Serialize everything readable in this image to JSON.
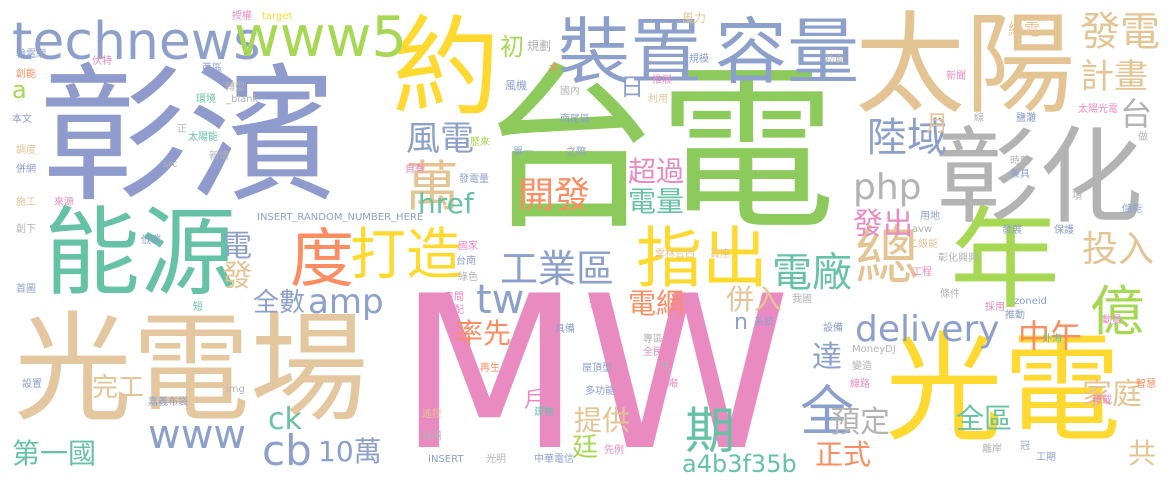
{
  "words": [
    {
      "text": "MW",
      "color": "#E98BC1"
    },
    {
      "text": "台電",
      "color": "#8CCB5B"
    },
    {
      "text": "彰濱",
      "color": "#8F9ACD"
    },
    {
      "text": "光電場",
      "color": "#E5C79F"
    },
    {
      "text": "光電",
      "color": "#FFD92F"
    },
    {
      "text": "能源",
      "color": "#66C2A5"
    },
    {
      "text": "太陽",
      "color": "#E5C494"
    },
    {
      "text": "彰化",
      "color": "#B3B3B3"
    },
    {
      "text": "約",
      "color": "#FFD92F"
    },
    {
      "text": "年",
      "color": "#A6D854"
    },
    {
      "text": "裝置",
      "color": "#8DA0CB"
    },
    {
      "text": "容量",
      "color": "#8DA0CB"
    },
    {
      "text": "technews",
      "color": "#8DA0CB"
    },
    {
      "text": "www5",
      "color": "#A6D854"
    },
    {
      "text": "度",
      "color": "#FC8D62"
    },
    {
      "text": "打造",
      "color": "#FFD92F"
    },
    {
      "text": "指出",
      "color": "#FFD92F"
    },
    {
      "text": "總",
      "color": "#E5C494"
    },
    {
      "text": "億",
      "color": "#A6D854"
    },
    {
      "text": "開發",
      "color": "#FC8D62"
    },
    {
      "text": "delivery",
      "color": "#8DA0CB"
    },
    {
      "text": "工業區",
      "color": "#8DA0CB"
    },
    {
      "text": "電廠",
      "color": "#66C2A5"
    },
    {
      "text": "amp",
      "color": "#8DA0CB"
    },
    {
      "text": "tw",
      "color": "#8DA0CB"
    },
    {
      "text": "陸域",
      "color": "#8DA0CB"
    },
    {
      "text": "風電",
      "color": "#8DA0CB"
    },
    {
      "text": "萬",
      "color": "#E5C494"
    },
    {
      "text": "php",
      "color": "#B3B3B3"
    },
    {
      "text": "計畫",
      "color": "#E5C494"
    },
    {
      "text": "發電",
      "color": "#E5C494"
    },
    {
      "text": "台",
      "color": "#B3B3B3"
    },
    {
      "text": "投入",
      "color": "#E5C494"
    },
    {
      "text": "全",
      "color": "#8DA0CB"
    },
    {
      "text": "www",
      "color": "#8DA0CB"
    },
    {
      "text": "cb",
      "color": "#8DA0CB"
    },
    {
      "text": "期",
      "color": "#66C2A5"
    },
    {
      "text": "中午",
      "color": "#FC8D62"
    },
    {
      "text": "全數",
      "color": "#8DA0CB"
    },
    {
      "text": "電網",
      "color": "#FC8D62"
    },
    {
      "text": "併入",
      "color": "#E5C494"
    },
    {
      "text": "率先",
      "color": "#FC8D62"
    },
    {
      "text": "href",
      "color": "#66C2A5"
    },
    {
      "text": "預定",
      "color": "#B3B3B3"
    },
    {
      "text": "全區",
      "color": "#66C2A5"
    },
    {
      "text": "家庭",
      "color": "#E5C494"
    },
    {
      "text": "提供",
      "color": "#E5C494"
    },
    {
      "text": "正式",
      "color": "#FC8D62"
    },
    {
      "text": "10萬",
      "color": "#8DA0CB"
    },
    {
      "text": "第一國",
      "color": "#66C2A5"
    },
    {
      "text": "a4b3f35b",
      "color": "#66C2A5"
    },
    {
      "text": "超過",
      "color": "#E98BC1"
    },
    {
      "text": "電量",
      "color": "#66C2A5"
    },
    {
      "text": "發出",
      "color": "#E98BC1"
    },
    {
      "text": "完工",
      "color": "#E5C494"
    },
    {
      "text": "達",
      "color": "#8DA0CB"
    },
    {
      "text": "共",
      "color": "#E5C494"
    },
    {
      "text": "ck",
      "color": "#66C2A5"
    },
    {
      "text": "電",
      "color": "#8DA0CB"
    },
    {
      "text": "發",
      "color": "#E5C494"
    },
    {
      "text": "n",
      "color": "#8DA0CB"
    },
    {
      "text": "月",
      "color": "#E5C494"
    },
    {
      "text": "日",
      "color": "#8DA0CB"
    },
    {
      "text": "初",
      "color": "#A6D854"
    },
    {
      "text": "a",
      "color": "#A6D854"
    },
    {
      "text": "戶",
      "color": "#E98BC1"
    },
    {
      "text": "廷",
      "color": "#A6D854"
    },
    {
      "text": "授權",
      "color": "#E98BC1"
    },
    {
      "text": "target",
      "color": "#FFD92F"
    },
    {
      "text": "風力",
      "color": "#E5C494"
    },
    {
      "text": "綠電",
      "color": "#E5C494"
    },
    {
      "text": "規劃",
      "color": "#B3B3B3"
    },
    {
      "text": "規模",
      "color": "#8DA0CB"
    },
    {
      "text": "功能",
      "color": "#B3B3B3"
    },
    {
      "text": "千",
      "color": "#FC8D62"
    },
    {
      "text": "推展",
      "color": "#E98BC1"
    },
    {
      "text": "風機",
      "color": "#8DA0CB"
    },
    {
      "text": "國內",
      "color": "#B3B3B3"
    },
    {
      "text": "利用",
      "color": "#E5C494"
    },
    {
      "text": "南尾區",
      "color": "#8DA0CB"
    },
    {
      "text": "單一",
      "color": "#8DA0CB"
    },
    {
      "text": "之際",
      "color": "#8DA0CB"
    },
    {
      "text": "歷來",
      "color": "#A6D854"
    },
    {
      "text": "自有",
      "color": "#E98BC1"
    },
    {
      "text": "發電量",
      "color": "#8DA0CB"
    },
    {
      "text": "輪電網",
      "color": "#8DA0CB"
    },
    {
      "text": "伏特",
      "color": "#E98BC1"
    },
    {
      "text": "創能",
      "color": "#FC8D62"
    },
    {
      "text": "西區",
      "color": "#8DA0CB"
    },
    {
      "text": "轉型",
      "color": "#B3B3B3"
    },
    {
      "text": "環境",
      "color": "#66C2A5"
    },
    {
      "text": "_blank",
      "color": "#B3B3B3"
    },
    {
      "text": "本文",
      "color": "#8DA0CB"
    },
    {
      "text": "太陽能",
      "color": "#66C2A5"
    },
    {
      "text": "調度",
      "color": "#E5C494"
    },
    {
      "text": "新增",
      "color": "#B3B3B3"
    },
    {
      "text": "併網",
      "color": "#8DA0CB"
    },
    {
      "text": "src",
      "color": "#B3B3B3"
    },
    {
      "text": "來源",
      "color": "#E98BC1"
    },
    {
      "text": "施工",
      "color": "#E5C494"
    },
    {
      "text": "INSERT_RANDOM_NUMBER_HERE",
      "color": "#8DA0CB"
    },
    {
      "text": "創下",
      "color": "#B3B3B3"
    },
    {
      "text": "低碳",
      "color": "#8DA0CB"
    },
    {
      "text": "國家",
      "color": "#E98BC1"
    },
    {
      "text": "台南",
      "color": "#8DA0CB"
    },
    {
      "text": "雲林台西",
      "color": "#E5C494"
    },
    {
      "text": "首座",
      "color": "#E5C494"
    },
    {
      "text": "綠色",
      "color": "#B3B3B3"
    },
    {
      "text": "首圖",
      "color": "#8DA0CB"
    },
    {
      "text": "日間",
      "color": "#E98BC1"
    },
    {
      "text": "搭配",
      "color": "#E98BC1"
    },
    {
      "text": "短",
      "color": "#66C2A5"
    },
    {
      "text": "元",
      "color": "#E98BC1"
    },
    {
      "text": "具備",
      "color": "#8DA0CB"
    },
    {
      "text": "專區",
      "color": "#B3B3B3"
    },
    {
      "text": "全民",
      "color": "#E98BC1"
    },
    {
      "text": "系統",
      "color": "#8DA0CB"
    },
    {
      "text": "我國",
      "color": "#B3B3B3"
    },
    {
      "text": "設備",
      "color": "#8DA0CB"
    },
    {
      "text": "MoneyDJ",
      "color": "#B3B3B3"
    },
    {
      "text": "屋頂型",
      "color": "#8DA0CB"
    },
    {
      "text": "再生",
      "color": "#FC8D62"
    },
    {
      "text": "件",
      "color": "#B3B3B3"
    },
    {
      "text": "設置",
      "color": "#8DA0CB"
    },
    {
      "text": "img",
      "color": "#B3B3B3"
    },
    {
      "text": "多功能",
      "color": "#8DA0CB"
    },
    {
      "text": "公噸",
      "color": "#E98BC1"
    },
    {
      "text": "遙控",
      "color": "#E5C494"
    },
    {
      "text": "建物",
      "color": "#66C2A5"
    },
    {
      "text": "嘉義布袋",
      "color": "#8DA0CB"
    },
    {
      "text": "台灣",
      "color": "#B3B3B3"
    },
    {
      "text": "先例",
      "color": "#E98BC1"
    },
    {
      "text": "INSERT",
      "color": "#8DA0CB"
    },
    {
      "text": "光明",
      "color": "#B3B3B3"
    },
    {
      "text": "中華電信",
      "color": "#8DA0CB"
    },
    {
      "text": "離岸",
      "color": "#B3B3B3"
    },
    {
      "text": "工期",
      "color": "#8DA0CB"
    },
    {
      "text": "冠",
      "color": "#8DA0CB"
    },
    {
      "text": "線路",
      "color": "#E98BC1"
    },
    {
      "text": "轉載",
      "color": "#E98BC1"
    },
    {
      "text": "變造",
      "color": "#B3B3B3"
    },
    {
      "text": "外海",
      "color": "#66C2A5"
    },
    {
      "text": "智慧",
      "color": "#FC8D62"
    },
    {
      "text": "推動",
      "color": "#8DA0CB"
    },
    {
      "text": "zoneid",
      "color": "#8DA0CB"
    },
    {
      "text": "採用",
      "color": "#E98BC1"
    },
    {
      "text": "條件",
      "color": "#B3B3B3"
    },
    {
      "text": "動員",
      "color": "#E98BC1"
    },
    {
      "text": "工程",
      "color": "#E98BC1"
    },
    {
      "text": "彰化興興",
      "color": "#B3B3B3"
    },
    {
      "text": "二級能",
      "color": "#E5C494"
    },
    {
      "text": "avw",
      "color": "#B3B3B3"
    },
    {
      "text": "用地",
      "color": "#8DA0CB"
    },
    {
      "text": "發展",
      "color": "#8DA0CB"
    },
    {
      "text": "保護",
      "color": "#8DA0CB"
    },
    {
      "text": "時數",
      "color": "#B3B3B3"
    },
    {
      "text": "兼具",
      "color": "#8DA0CB"
    },
    {
      "text": "儲能",
      "color": "#8DA0CB"
    },
    {
      "text": "項",
      "color": "#B3B3B3"
    },
    {
      "text": "鹽灘",
      "color": "#8DA0CB"
    },
    {
      "text": "線",
      "color": "#B3B3B3"
    },
    {
      "text": "做",
      "color": "#B3B3B3"
    },
    {
      "text": "太陽光電",
      "color": "#E98BC1"
    },
    {
      "text": "新聞",
      "color": "#E98BC1"
    },
    {
      "text": "正",
      "color": "#B3B3B3"
    }
  ]
}
